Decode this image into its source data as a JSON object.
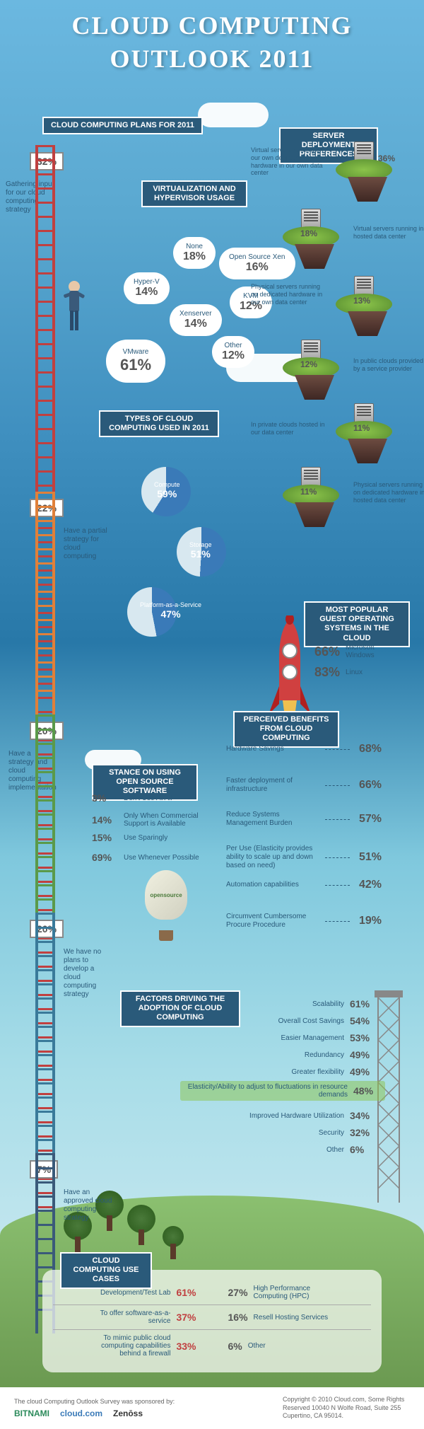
{
  "title": "CLOUD COMPUTING",
  "subtitle": "OUTLOOK 2011",
  "ladder_plans": {
    "header": "CLOUD COMPUTING PLANS FOR 2011",
    "steps": [
      {
        "pct": "32%",
        "label": "Gathering input for our cloud computing strategy",
        "color": "#c04040"
      },
      {
        "pct": "22%",
        "label": "Have a partial strategy for cloud computing",
        "color": "#e0803a"
      },
      {
        "pct": "20%",
        "label": "Have a strategy and cloud computing implementation",
        "color": "#5a9a4a"
      },
      {
        "pct": "20%",
        "label": "We have no plans to develop a cloud computing strategy",
        "color": "#3a7a9a"
      },
      {
        "pct": "7%",
        "label": "Have an approved cloud computing strategy",
        "color": "#3a5a7a"
      }
    ]
  },
  "virtualization": {
    "header": "VIRTUALIZATION AND HYPERVISOR USAGE",
    "items": [
      {
        "name": "None",
        "pct": "18%"
      },
      {
        "name": "Open Source Xen",
        "pct": "16%"
      },
      {
        "name": "Hyper-V",
        "pct": "14%"
      },
      {
        "name": "Xenserver",
        "pct": "14%"
      },
      {
        "name": "KVM",
        "pct": "12%"
      },
      {
        "name": "Other",
        "pct": "12%"
      },
      {
        "name": "VMware",
        "pct": "61%"
      }
    ]
  },
  "server_deployment": {
    "header": "SERVER DEPLOYMENT PREFERENCES",
    "items": [
      {
        "pct": "36%",
        "label": "Virtual servers running on our own dedicated hardware in our own data center"
      },
      {
        "pct": "18%",
        "label": "Virtual servers running in a hosted data center"
      },
      {
        "pct": "13%",
        "label": "Physical servers running on dedicated hardware in our own data center"
      },
      {
        "pct": "12%",
        "label": "In public clouds provided by a service provider"
      },
      {
        "pct": "11%",
        "label": "In private clouds hosted in our data center"
      },
      {
        "pct": "11%",
        "label": "Physical servers running on dedicated hardware in a hosted data center"
      }
    ]
  },
  "cloud_types": {
    "header": "TYPES OF CLOUD COMPUTING USED IN 2011",
    "items": [
      {
        "name": "Compute",
        "pct": "59%",
        "pct_num": 59
      },
      {
        "name": "Storage",
        "pct": "51%",
        "pct_num": 51
      },
      {
        "name": "Platform-as-a-Service",
        "pct": "47%",
        "pct_num": 47
      }
    ],
    "pie_color_fill": "#3a7ab8",
    "pie_color_empty": "#d8e8f0"
  },
  "guest_os": {
    "header": "MOST POPULAR GUEST OPERATING SYSTEMS IN THE CLOUD",
    "items": [
      {
        "pct": "66%",
        "name": "Microsoft Windows"
      },
      {
        "pct": "83%",
        "name": "Linux"
      }
    ]
  },
  "benefits": {
    "header": "PERCEIVED BENEFITS FROM CLOUD COMPUTING",
    "items": [
      {
        "label": "Hardware Savings",
        "pct": "68%"
      },
      {
        "label": "Faster deployment of infrastructure",
        "pct": "66%"
      },
      {
        "label": "Reduce Systems Management Burden",
        "pct": "57%"
      },
      {
        "label": "Per Use (Elasticity provides ability to scale up and down based on need)",
        "pct": "51%"
      },
      {
        "label": "Automation capabilities",
        "pct": "42%"
      },
      {
        "label": "Circumvent Cumbersome Procure Procedure",
        "pct": "19%"
      }
    ]
  },
  "oss_stance": {
    "header": "STANCE ON USING OPEN SOURCE SOFTWARE",
    "items": [
      {
        "pct": "3%",
        "label": "Don't Use At All"
      },
      {
        "pct": "14%",
        "label": "Only When Commercial Support is Available"
      },
      {
        "pct": "15%",
        "label": "Use Sparingly"
      },
      {
        "pct": "69%",
        "label": "Use Whenever Possible"
      }
    ],
    "balloon_label": "opensource"
  },
  "factors": {
    "header": "FACTORS DRIVING THE ADOPTION OF CLOUD COMPUTING",
    "items": [
      {
        "label": "Scalability",
        "pct": "61%"
      },
      {
        "label": "Overall Cost Savings",
        "pct": "54%"
      },
      {
        "label": "Easier Management",
        "pct": "53%"
      },
      {
        "label": "Redundancy",
        "pct": "49%"
      },
      {
        "label": "Greater flexibility",
        "pct": "49%"
      },
      {
        "label": "Elasticity/Ability to adjust to fluctuations in resource demands",
        "pct": "48%",
        "highlight": true
      },
      {
        "label": "Improved Hardware Utilization",
        "pct": "34%"
      },
      {
        "label": "Security",
        "pct": "32%"
      },
      {
        "label": "Other",
        "pct": "6%"
      }
    ]
  },
  "use_cases": {
    "header": "CLOUD COMPUTING USE CASES",
    "rows": [
      {
        "left_label": "Development/Test Lab",
        "left_pct": "61%",
        "right_pct": "27%",
        "right_label": "High Performance Computing (HPC)"
      },
      {
        "left_label": "To offer software-as-a-service",
        "left_pct": "37%",
        "right_pct": "16%",
        "right_label": "Resell Hosting Services"
      },
      {
        "left_label": "To mimic public cloud computing capabilities behind a firewall",
        "left_pct": "33%",
        "right_pct": "6%",
        "right_label": "Other"
      }
    ],
    "pct_color_high": "#c04040",
    "pct_color_low": "#555555"
  },
  "footer": {
    "sponsor_text": "The cloud Computing Outlook Survey was sponsored by:",
    "logos": [
      "BITNAMI",
      "cloud.com",
      "Zenōss"
    ],
    "copyright": "Copyright © 2010 Cloud.com, Some Rights Reserved 10040 N Wolfe Road, Suite 255 Cupertino, CA 95014."
  }
}
